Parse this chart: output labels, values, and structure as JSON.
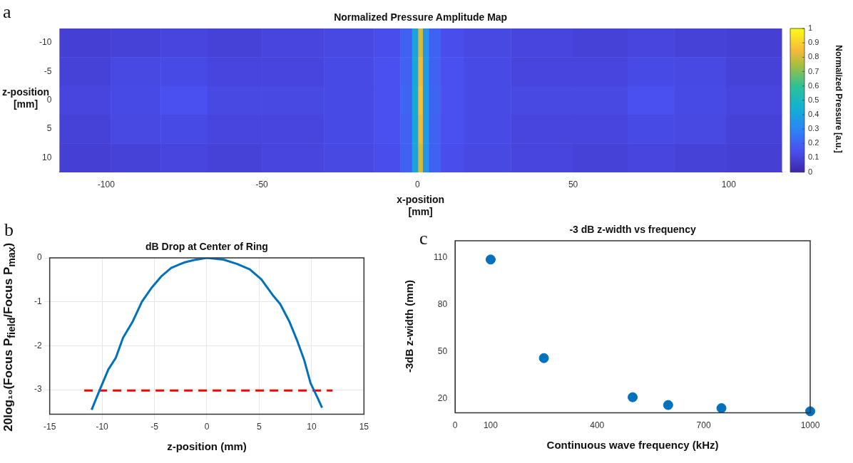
{
  "chart_data": [
    {
      "type": "heatmap",
      "title": "Normalized Pressure Amplitude Map",
      "xlabel": "x-position [mm]",
      "ylabel": "z-position [mm]",
      "clabel": "Normalized Pressure [a.u.]",
      "x": [
        -107,
        -90,
        -75,
        -60,
        -40,
        -20,
        -8,
        -3,
        -0.5,
        1,
        2.5,
        5,
        10,
        20,
        40,
        60,
        75,
        90,
        108
      ],
      "y_categories": [
        "-10",
        "-5",
        "0",
        "5",
        "10"
      ],
      "cells": [
        [
          0.09,
          0.1,
          0.11,
          0.1,
          0.11,
          0.12,
          0.14,
          0.2,
          0.4,
          0.8,
          0.35,
          0.2,
          0.14,
          0.12,
          0.11,
          0.1,
          0.11,
          0.1,
          0.09
        ],
        [
          0.1,
          0.12,
          0.13,
          0.11,
          0.11,
          0.13,
          0.15,
          0.2,
          0.42,
          0.84,
          0.37,
          0.2,
          0.15,
          0.13,
          0.11,
          0.11,
          0.13,
          0.12,
          0.1
        ],
        [
          0.11,
          0.13,
          0.15,
          0.12,
          0.12,
          0.13,
          0.15,
          0.21,
          0.43,
          0.86,
          0.38,
          0.21,
          0.15,
          0.13,
          0.12,
          0.12,
          0.15,
          0.13,
          0.11
        ],
        [
          0.1,
          0.12,
          0.13,
          0.11,
          0.11,
          0.13,
          0.15,
          0.2,
          0.42,
          0.84,
          0.37,
          0.2,
          0.15,
          0.13,
          0.11,
          0.11,
          0.13,
          0.12,
          0.1
        ],
        [
          0.09,
          0.1,
          0.11,
          0.1,
          0.11,
          0.12,
          0.14,
          0.2,
          0.4,
          0.8,
          0.35,
          0.2,
          0.14,
          0.12,
          0.11,
          0.1,
          0.11,
          0.1,
          0.09
        ]
      ],
      "xlim": [
        -115,
        117
      ],
      "xticks": [
        -100,
        -50,
        0,
        50,
        100
      ],
      "clim": [
        0,
        1
      ],
      "cticks": [
        0,
        0.1,
        0.2,
        0.3,
        0.4,
        0.5,
        0.6,
        0.7,
        0.8,
        0.9,
        1
      ],
      "annotations": [
        "a"
      ]
    },
    {
      "type": "line",
      "title": "dB Drop at Center of Ring",
      "xlabel": "z-position (mm)",
      "ylabel": "20log₁₀(Focus P$_{field}$/Focus P$_{max}$)",
      "series": [
        {
          "color": "#0072bd",
          "x": [
            -11.0,
            -10.3,
            -9.4,
            -8.7,
            -8.0,
            -7.1,
            -6.2,
            -5.3,
            -4.3,
            -3.4,
            -2.1,
            -1.2,
            0,
            1.6,
            2.9,
            4.1,
            5.2,
            6.3,
            7.0,
            7.9,
            8.6,
            9.3,
            9.9,
            10.6,
            11.0
          ],
          "values": [
            -3.46,
            -3.05,
            -2.54,
            -2.28,
            -1.82,
            -1.46,
            -1.0,
            -0.69,
            -0.41,
            -0.23,
            -0.1,
            -0.05,
            0,
            -0.04,
            -0.14,
            -0.26,
            -0.49,
            -0.85,
            -1.05,
            -1.46,
            -1.87,
            -2.33,
            -2.85,
            -3.2,
            -3.41
          ]
        },
        {
          "color": "#ff0000",
          "line_style": "dashed",
          "x": [
            -11.7,
            12
          ],
          "values": [
            -3.02,
            -3.02
          ]
        }
      ],
      "xlim": [
        -15,
        15
      ],
      "xticks": [
        -15,
        -10,
        -5,
        0,
        5,
        10,
        15
      ],
      "ylim": [
        -3.56,
        0
      ],
      "yticks": [
        -3,
        -2,
        -1,
        0
      ],
      "grid": true,
      "marker": "none",
      "annotations": [
        "b"
      ]
    },
    {
      "type": "scatter",
      "title": "-3 dB z-width vs frequency",
      "xlabel": "Continuous wave frequency (kHz)",
      "ylabel": "-3dB z-width (mm)",
      "series": [
        {
          "color": "#0072bd",
          "x": [
            100,
            250,
            500,
            600,
            750,
            1000
          ],
          "values": [
            109,
            46,
            21,
            16,
            14,
            12
          ]
        }
      ],
      "xlim": [
        0,
        1000
      ],
      "xticks": [
        0,
        100,
        400,
        700,
        1000
      ],
      "ylim": [
        11,
        121
      ],
      "yticks": [
        20,
        50,
        80,
        110
      ],
      "marker": "circle",
      "annotations": [
        "c"
      ]
    }
  ]
}
